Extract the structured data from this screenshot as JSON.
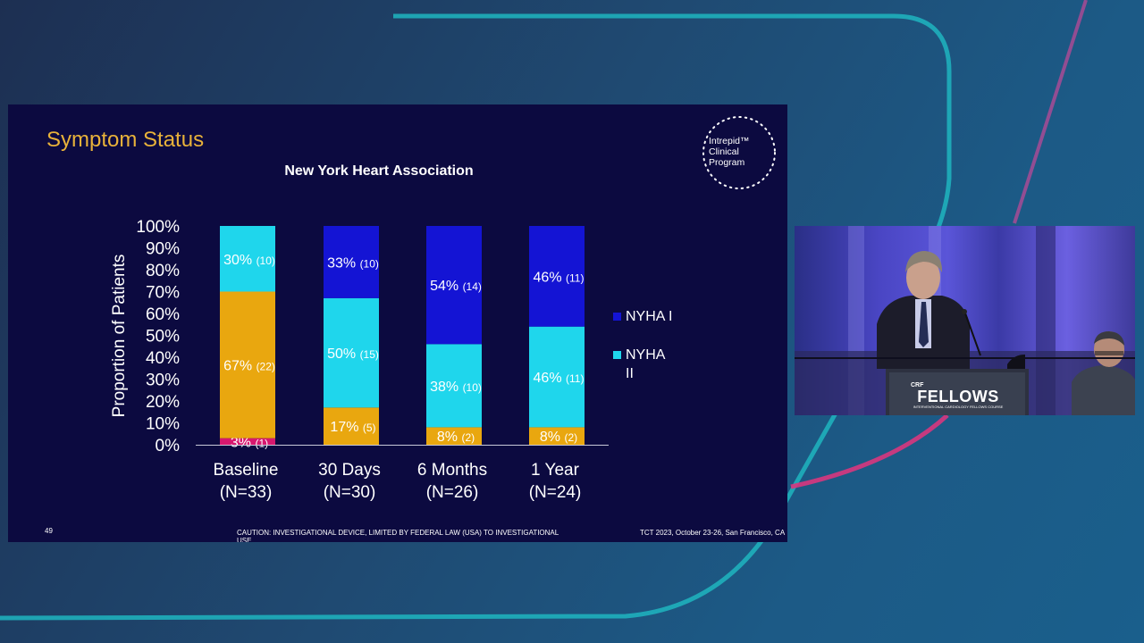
{
  "slide": {
    "title": "Symptom Status",
    "logo_text": [
      "Intrepid™",
      "Clinical",
      "Program"
    ],
    "page_number": "49",
    "caution": "CAUTION: INVESTIGATIONAL DEVICE, LIMITED BY FEDERAL LAW (USA) TO INVESTIGATIONAL USE",
    "conference": "TCT 2023, October 23-26, San Francisco, CA"
  },
  "video": {
    "brand": "CRF",
    "title": "FELLOWS",
    "subtitle": "INTERVENTIONAL CARDIOLOGY FELLOWS COURSE"
  },
  "chart_data": {
    "type": "bar",
    "stacked": true,
    "title": "New York Heart Association",
    "ylabel": "Proportion of Patients",
    "xlabel": "",
    "ylim": [
      0,
      100
    ],
    "yticks": [
      "0%",
      "10%",
      "20%",
      "30%",
      "40%",
      "50%",
      "60%",
      "70%",
      "80%",
      "90%",
      "100%"
    ],
    "categories": [
      [
        "Baseline",
        "(N=33)"
      ],
      [
        "30 Days",
        "(N=30)"
      ],
      [
        "6 Months",
        "(N=26)"
      ],
      [
        "1 Year",
        "(N=24)"
      ]
    ],
    "series": [
      {
        "color": "#d6186e",
        "values": [
          3,
          0,
          0,
          0
        ],
        "pct_labels": [
          "3%",
          "",
          "",
          ""
        ],
        "n_labels": [
          "(1)",
          "",
          "",
          ""
        ]
      },
      {
        "color": "#e9a70f",
        "values": [
          67,
          17,
          8,
          8
        ],
        "pct_labels": [
          "67%",
          "17%",
          "8%",
          "8%"
        ],
        "n_labels": [
          "(22)",
          "(5)",
          "(2)",
          "(2)"
        ]
      },
      {
        "name": "NYHA II",
        "color": "#1fd6ec",
        "values": [
          30,
          50,
          38,
          46
        ],
        "pct_labels": [
          "30%",
          "50%",
          "38%",
          "46%"
        ],
        "n_labels": [
          "(10)",
          "(15)",
          "(10)",
          "(11)"
        ]
      },
      {
        "name": "NYHA I",
        "color": "#1414d4",
        "values": [
          0,
          33,
          54,
          46
        ],
        "pct_labels": [
          "",
          "33%",
          "54%",
          "46%"
        ],
        "n_labels": [
          "",
          "(10)",
          "(14)",
          "(11)"
        ]
      }
    ],
    "legend": [
      {
        "label": [
          "NYHA I"
        ],
        "color": "#1414d4"
      },
      {
        "label": [
          "NYHA",
          "II"
        ],
        "color": "#1fd6ec"
      }
    ],
    "legend_position": "right",
    "grid": false
  }
}
